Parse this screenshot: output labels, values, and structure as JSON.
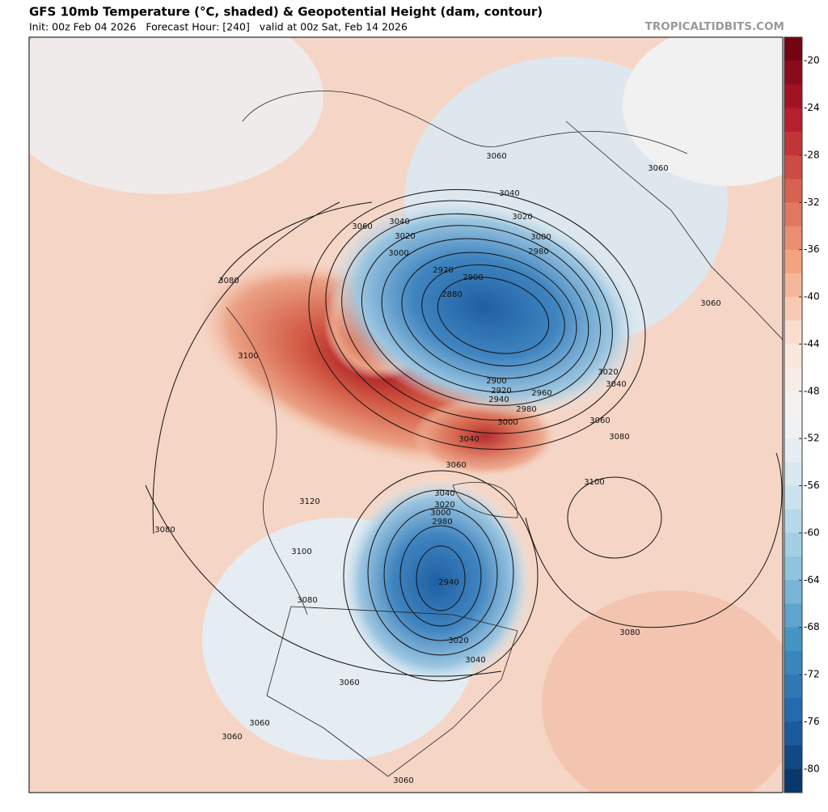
{
  "header": {
    "title": "GFS 10mb Temperature (°C, shaded) & Geopotential Height (dam, contour)",
    "subtitle": "Init: 00z Feb 04 2026   Forecast Hour: [240]   valid at 00z Sat, Feb 14 2026",
    "brand": "TROPICALTIDBITS.COM"
  },
  "colorbar": {
    "lim": [
      -82,
      -18
    ],
    "ticks": [
      -20,
      -24,
      -28,
      -32,
      -36,
      -40,
      -44,
      -48,
      -52,
      -56,
      -60,
      -64,
      -68,
      -72,
      -76,
      -80
    ],
    "colors": [
      "#67000d",
      "#b2182b",
      "#d6604d",
      "#f4a582",
      "#fbe3d6",
      "#f4f4f4",
      "#d1e5f0",
      "#92c5de",
      "#4393c3",
      "#2166ac",
      "#053061"
    ]
  },
  "contour_labels": [
    3060,
    3060,
    3040,
    3020,
    3060,
    3040,
    3020,
    3000,
    3000,
    2980,
    2920,
    2900,
    2880,
    3080,
    3060,
    3100,
    3020,
    3040,
    2900,
    2920,
    2940,
    2960,
    2980,
    3000,
    3060,
    3080,
    3040,
    3060,
    3100,
    3040,
    3020,
    3000,
    2980,
    3120,
    3080,
    3100,
    2940,
    3080,
    3080,
    3020,
    3040,
    3060,
    3060,
    3060,
    3060
  ]
}
